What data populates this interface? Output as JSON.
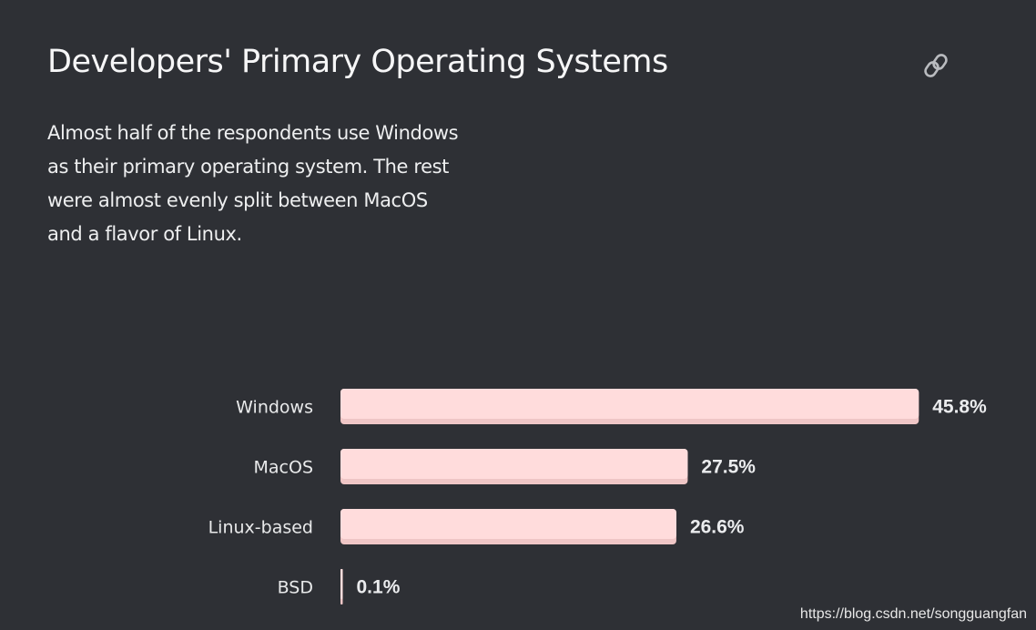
{
  "header": {
    "title": "Developers' Primary Operating Systems",
    "link_icon": "link-icon"
  },
  "summary": {
    "text": "Almost half of the respondents use Windows as their primary operating system. The rest were almost evenly split between MacOS and a flavor of Linux."
  },
  "colors": {
    "background": "#2e3035",
    "bar_fill": "#ffdcdc",
    "bar_shadow": "#efc6c6",
    "text": "#f2f2f3"
  },
  "chart_data": {
    "type": "bar",
    "orientation": "horizontal",
    "categories": [
      "Windows",
      "MacOS",
      "Linux-based",
      "BSD"
    ],
    "values": [
      45.8,
      27.5,
      26.6,
      0.1
    ],
    "value_labels": [
      "45.8%",
      "27.5%",
      "26.6%",
      "0.1%"
    ],
    "unit": "%",
    "grid": false
  },
  "watermark": "https://blog.csdn.net/songguangfan"
}
